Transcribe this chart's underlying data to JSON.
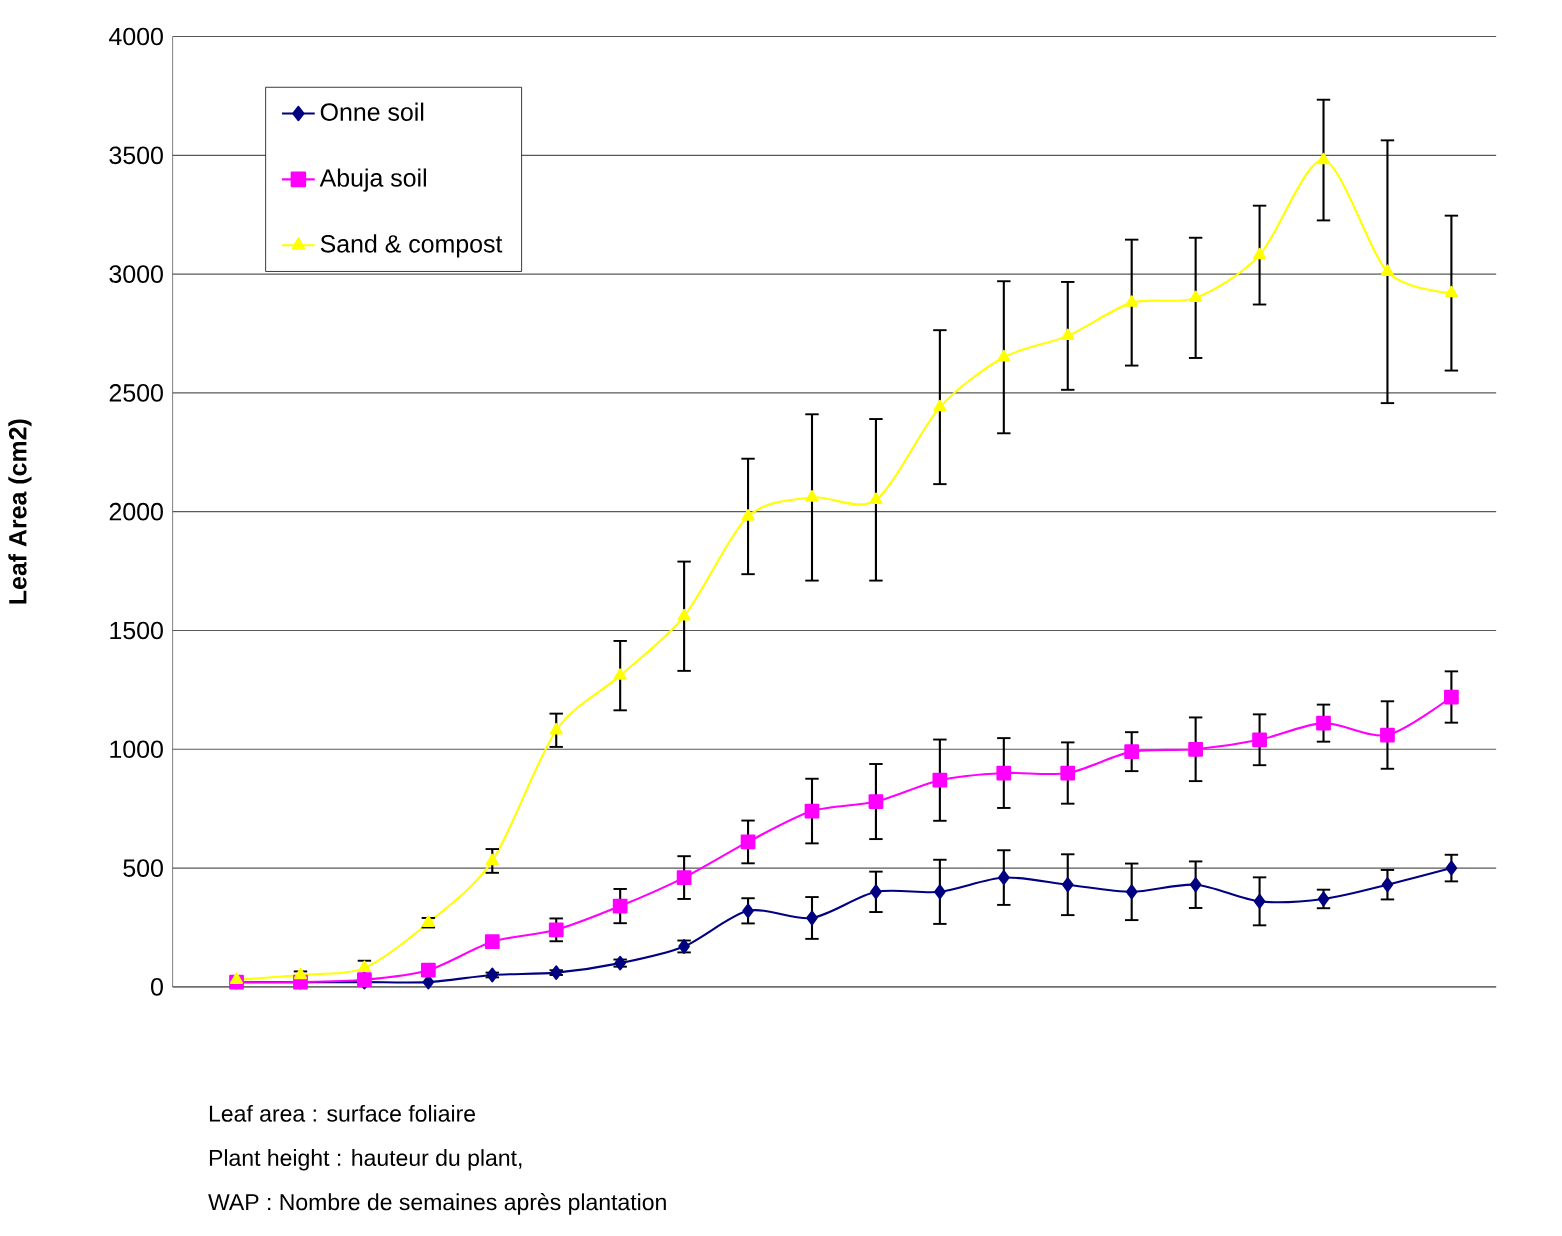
{
  "chart_data": {
    "type": "line",
    "ylabel": "Leaf Area (cm2)",
    "categories": [
      null,
      null,
      null,
      null,
      null,
      null,
      null,
      null,
      null,
      null,
      null,
      null,
      null,
      null,
      null,
      null,
      null,
      null,
      null,
      null
    ],
    "ylim": [
      0,
      4000
    ],
    "yticks": [
      0,
      500,
      1000,
      1500,
      2000,
      2500,
      3000,
      3500,
      4000
    ],
    "grid": "y",
    "legend": "top left",
    "tick_labels": "y",
    "line_style": "solid",
    "annotations": [
      "Leaf area : surface foliaire",
      "Plant height : hauteur du plant,",
      "WAP : Nombre de semaines après plantation"
    ],
    "series": [
      {
        "name": "Onne soil",
        "color": "#000080",
        "marker": "diamond",
        "values": [
          20,
          20,
          20,
          20,
          50,
          60,
          100,
          170,
          320,
          290,
          400,
          400,
          460,
          430,
          400,
          430,
          360,
          370,
          430,
          500
        ],
        "errors": [
          null,
          null,
          null,
          null,
          10,
          10,
          15,
          25,
          53,
          88,
          85,
          135,
          115,
          128,
          119,
          98,
          101,
          39,
          62,
          56
        ]
      },
      {
        "name": "Abuja soil",
        "color": "#ff00ff",
        "marker": "square",
        "values": [
          20,
          20,
          30,
          70,
          190,
          240,
          340,
          460,
          610,
          740,
          780,
          870,
          900,
          900,
          990,
          1000,
          1040,
          1110,
          1060,
          1220
        ],
        "errors": [
          null,
          null,
          null,
          null,
          null,
          48,
          72,
          90,
          90,
          136,
          158,
          171,
          147,
          129,
          82,
          134,
          107,
          78,
          142,
          108
        ]
      },
      {
        "name": "Sand & compost",
        "color": "#ffff00",
        "marker": "triangle",
        "values": [
          30,
          50,
          80,
          270,
          530,
          1080,
          1310,
          1560,
          1980,
          2060,
          2050,
          2440,
          2650,
          2740,
          2880,
          2900,
          3080,
          3480,
          3010,
          2920
        ],
        "errors": [
          10,
          15,
          30,
          20,
          50,
          70,
          146,
          230,
          243,
          350,
          340,
          324,
          320,
          227,
          265,
          253,
          208,
          254,
          553,
          326
        ]
      }
    ]
  }
}
